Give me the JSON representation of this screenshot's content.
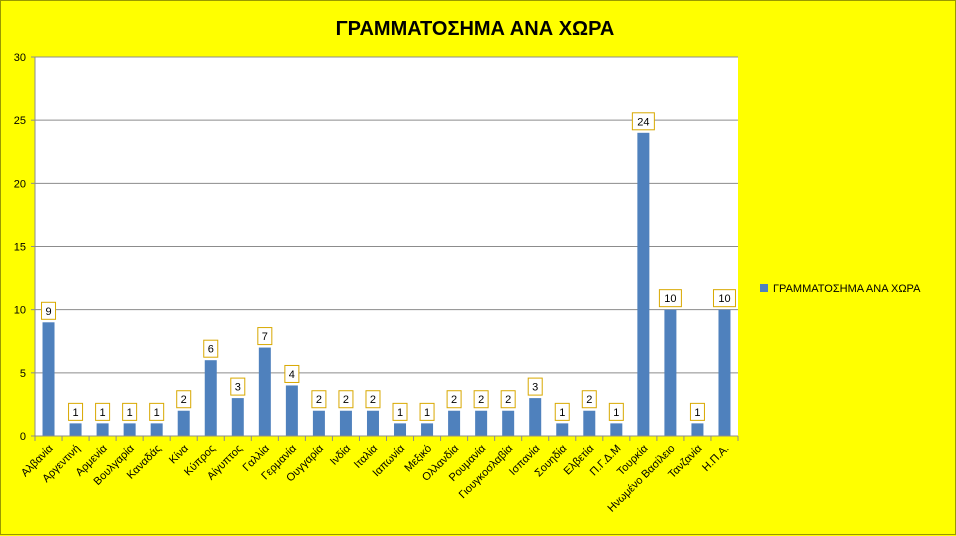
{
  "chart_data": {
    "type": "bar",
    "title": "ΓΡΑΜΜΑΤΟΣΗΜΑ ΑΝΑ ΧΩΡΑ",
    "xlabel": "",
    "ylabel": "",
    "ylim": [
      0,
      30
    ],
    "yticks": [
      0,
      5,
      10,
      15,
      20,
      25,
      30
    ],
    "grid": true,
    "legend_position": "right",
    "categories": [
      "Αλβανία",
      "Αργεντινή",
      "Αρμενία",
      "Βουλγαρία",
      "Καναδάς",
      "Κίνα",
      "Κύπρος",
      "Αίγυπτος",
      "Γαλλία",
      "Γερμανία",
      "Ουγγαρία",
      "Ινδία",
      "Ιταλία",
      "Ιαπωνία",
      "Μεξικό",
      "Ολλανδία",
      "Ρουμανία",
      "Γιουγκοσλαβία",
      "Ισπανία",
      "Σουηδία",
      "Ελβετία",
      "Π.Γ.Δ.Μ",
      "Τουρκία",
      "Ηνωμένο Βασίλειο",
      "Τανζανία",
      "Η.Π.Α."
    ],
    "series": [
      {
        "name": "ΓΡΑΜΜΑΤΟΣΗΜΑ ΑΝΑ ΧΩΡΑ",
        "color": "#4f81bd",
        "values": [
          9,
          1,
          1,
          1,
          1,
          2,
          6,
          3,
          7,
          4,
          2,
          2,
          2,
          1,
          1,
          2,
          2,
          2,
          3,
          1,
          2,
          1,
          24,
          10,
          1,
          10
        ]
      }
    ]
  }
}
